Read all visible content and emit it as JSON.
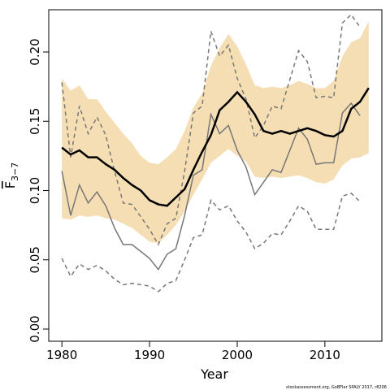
{
  "chart_data": {
    "type": "line",
    "xlabel": "Year",
    "ylabel_main": "F",
    "ylabel_sub": "3−7",
    "footnote": "stockassessment.org, GoBFIer SPALY 2017, r8206",
    "x": [
      1980,
      1981,
      1982,
      1983,
      1984,
      1985,
      1986,
      1987,
      1988,
      1989,
      1990,
      1991,
      1992,
      1993,
      1994,
      1995,
      1996,
      1997,
      1998,
      1999,
      2000,
      2001,
      2002,
      2003,
      2004,
      2005,
      2006,
      2007,
      2008,
      2009,
      2010,
      2011,
      2012,
      2013,
      2014,
      2015
    ],
    "band": {
      "color": "#f5deb3",
      "lower": [
        0.08,
        0.079,
        0.082,
        0.081,
        0.082,
        0.08,
        0.079,
        0.076,
        0.073,
        0.068,
        0.063,
        0.062,
        0.068,
        0.075,
        0.085,
        0.097,
        0.108,
        0.12,
        0.125,
        0.13,
        0.125,
        0.121,
        0.11,
        0.109,
        0.11,
        0.109,
        0.11,
        0.111,
        0.109,
        0.106,
        0.105,
        0.108,
        0.118,
        0.123,
        0.124,
        0.127
      ],
      "upper": [
        0.181,
        0.172,
        0.176,
        0.166,
        0.166,
        0.157,
        0.149,
        0.141,
        0.134,
        0.125,
        0.12,
        0.119,
        0.124,
        0.13,
        0.143,
        0.16,
        0.17,
        0.19,
        0.203,
        0.213,
        0.204,
        0.191,
        0.176,
        0.174,
        0.175,
        0.174,
        0.176,
        0.179,
        0.177,
        0.174,
        0.174,
        0.179,
        0.197,
        0.207,
        0.21,
        0.222
      ]
    },
    "series": [
      {
        "color": "#000000",
        "width": 2.5,
        "dashed": false,
        "values": [
          0.131,
          0.126,
          0.129,
          0.124,
          0.124,
          0.119,
          0.115,
          0.109,
          0.104,
          0.1,
          0.093,
          0.09,
          0.089,
          0.095,
          0.101,
          0.115,
          0.128,
          0.14,
          0.158,
          0.164,
          0.171,
          0.164,
          0.155,
          0.143,
          0.141,
          0.143,
          0.141,
          0.143,
          0.145,
          0.143,
          0.14,
          0.139,
          0.143,
          0.159,
          0.164,
          0.174
        ]
      },
      {
        "color": "#777777",
        "width": 1.5,
        "dashed": false,
        "values": [
          0.114,
          0.082,
          0.104,
          0.091,
          0.099,
          0.089,
          0.073,
          0.061,
          0.061,
          0.056,
          0.051,
          0.043,
          0.054,
          0.058,
          0.082,
          0.111,
          0.115,
          0.155,
          0.141,
          0.147,
          0.129,
          0.117,
          0.097,
          0.106,
          0.115,
          0.113,
          0.129,
          0.145,
          0.137,
          0.119,
          0.12,
          0.12,
          0.156,
          0.163,
          0.154,
          null
        ]
      },
      {
        "color": "#777777",
        "width": 1.5,
        "dashed": true,
        "values": [
          0.178,
          0.124,
          0.161,
          0.141,
          0.153,
          0.14,
          0.114,
          0.091,
          0.09,
          0.081,
          0.072,
          0.061,
          0.076,
          0.08,
          0.114,
          0.156,
          0.161,
          0.215,
          0.197,
          0.205,
          0.181,
          0.166,
          0.138,
          0.147,
          0.161,
          0.159,
          0.18,
          0.201,
          0.193,
          0.167,
          0.168,
          0.167,
          0.221,
          0.227,
          0.218,
          null
        ]
      },
      {
        "color": "#777777",
        "width": 1.5,
        "dashed": true,
        "values": [
          0.051,
          0.038,
          0.047,
          0.043,
          0.046,
          0.042,
          0.036,
          0.032,
          0.033,
          0.032,
          0.031,
          0.027,
          0.033,
          0.035,
          0.05,
          0.066,
          0.068,
          0.093,
          0.086,
          0.089,
          0.078,
          0.07,
          0.058,
          0.062,
          0.069,
          0.068,
          0.078,
          0.089,
          0.085,
          0.072,
          0.072,
          0.072,
          0.096,
          0.098,
          0.092,
          null
        ]
      }
    ],
    "xlim": [
      1978.5,
      2016.5
    ],
    "ylim": [
      -0.0088,
      0.2305
    ],
    "xticks": [
      1980,
      1990,
      2000,
      2010
    ],
    "yticks": [
      {
        "value": 0,
        "label": "0.00"
      },
      {
        "value": 0.05,
        "label": "0.05"
      },
      {
        "value": 0.1,
        "label": "0.10"
      },
      {
        "value": 0.15,
        "label": "0.15"
      },
      {
        "value": 0.2,
        "label": "0.20"
      }
    ]
  }
}
